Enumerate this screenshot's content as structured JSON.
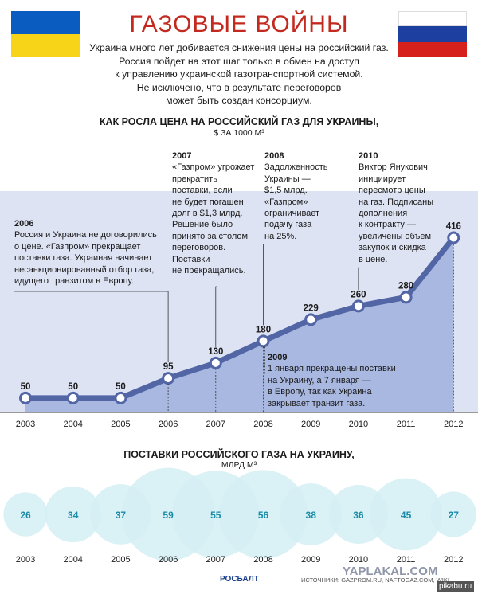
{
  "header": {
    "title": "ГАЗОВЫЕ ВОЙНЫ",
    "intro": [
      "Украина много лет добивается снижения цены на российский газ.",
      "Россия пойдет на этот шаг только в обмен на доступ",
      "к управлению украинской газотранспортной системой.",
      "Не исключено, что в результате переговоров",
      "может быть создан консорциум."
    ]
  },
  "colors": {
    "title": "#c4291f",
    "flag_ua_top": "#0a5cc0",
    "flag_ua_bottom": "#f7d417",
    "flag_ru_top": "#ffffff",
    "flag_ru_mid": "#1c3fa0",
    "flag_ru_bottom": "#d5201c",
    "line": "#5266a6",
    "area": "#a9b8e0",
    "band": "#dde3f3",
    "circle": "#d3eef3",
    "circle_text": "#1a8ca8"
  },
  "chart_data": [
    {
      "type": "area",
      "title": "КАК РОСЛА ЦЕНА НА РОССИЙСКИЙ ГАЗ ДЛЯ УКРАИНЫ,",
      "unit": "$ ЗА 1000 М³",
      "x": [
        "2003",
        "2004",
        "2005",
        "2006",
        "2007",
        "2008",
        "2009",
        "2010",
        "2011",
        "2012"
      ],
      "values": [
        50,
        50,
        50,
        95,
        130,
        180,
        229,
        260,
        280,
        416
      ],
      "grid": false,
      "annotations": [
        {
          "year": "2006",
          "title": "2006",
          "text": [
            "Россия и Украина не договорились",
            "о цене. «Газпром» прекращает",
            "поставки газа. Украиная начинает",
            "несанкционированный отбор газа,",
            "идущего транзитом в Европу."
          ]
        },
        {
          "year": "2007",
          "title": "2007",
          "text": [
            "«Газпром» угрожает",
            "прекратить",
            "поставки, если",
            "не будет погашен",
            "долг в $1,3  млрд.",
            "Решение было",
            "принято за столом",
            "переговоров.",
            "Поставки",
            "не прекращались."
          ]
        },
        {
          "year": "2008",
          "title": "2008",
          "text": [
            "Задолженность",
            "Украины —",
            "$1,5 млрд.",
            "«Газпром»",
            "ограничивает",
            "подачу газа",
            "на 25%."
          ]
        },
        {
          "year": "2009",
          "title": "2009",
          "text": [
            "1 января прекращены поставки",
            "на Украину, а 7 января —",
            "в Европу, так как Украина",
            "закрывает транзит газа."
          ]
        },
        {
          "year": "2010",
          "title": "2010",
          "text": [
            "Виктор Янукович",
            "инициирует",
            "пересмотр цены",
            "на газ. Подписаны",
            "дополнения",
            "к контракту —",
            "увеличены объем",
            "закупок и скидка",
            "в цене."
          ]
        }
      ]
    },
    {
      "type": "bubble",
      "title": "ПОСТАВКИ РОССИЙСКОГО ГАЗА НА УКРАИНУ,",
      "unit": "МЛРД М³",
      "x": [
        "2003",
        "2004",
        "2005",
        "2006",
        "2007",
        "2008",
        "2009",
        "2010",
        "2011",
        "2012"
      ],
      "values": [
        26,
        34,
        37,
        59,
        55,
        56,
        38,
        36,
        45,
        27
      ]
    }
  ],
  "footer": {
    "logo": "РОСБАЛТ",
    "sources": "ИСТОЧНИКИ: GAZPROM.RU, NAFTOGAZ.COM, WIKI",
    "watermark": "YAPLAKAL.COM",
    "corner": "pikabu.ru"
  }
}
